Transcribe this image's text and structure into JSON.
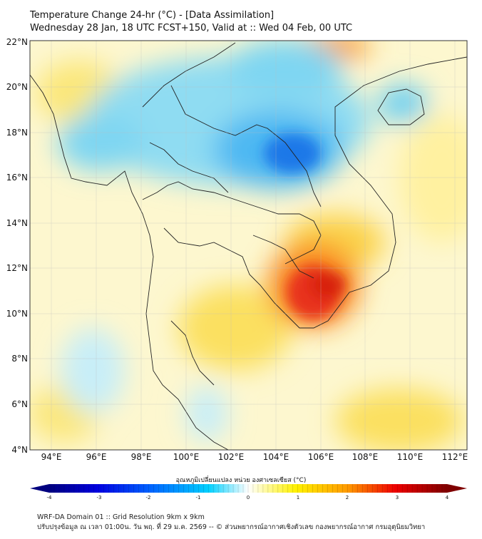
{
  "header": {
    "title": "Temperature Change 24-hr (°C) - [Data Assimilation]",
    "subtitle": "Wednesday 28 Jan, 18 UTC FCST+150, Valid at :: Wed 04 Feb, 00 UTC"
  },
  "map": {
    "lat_labels": [
      "22°N",
      "20°N",
      "18°N",
      "16°N",
      "14°N",
      "12°N",
      "10°N",
      "8°N",
      "6°N",
      "4°N"
    ],
    "lon_labels": [
      "94°E",
      "96°E",
      "98°E",
      "100°E",
      "102°E",
      "104°E",
      "106°E",
      "108°E",
      "110°E",
      "112°E"
    ],
    "lat_range": [
      4,
      22
    ],
    "lon_range": [
      93,
      112.5
    ]
  },
  "colorbar": {
    "title": "อุณหภูมิเปลี่ยนแปลง หน่วย องศาเซลเซียส (°C)",
    "ticks": [
      "-4",
      "-3",
      "-2",
      "-1",
      "0",
      "1",
      "2",
      "3",
      "4"
    ],
    "range": [
      -4,
      4
    ],
    "colors": [
      "#00007f",
      "#0000e0",
      "#0060ff",
      "#00c8ff",
      "#ffffff",
      "#fff200",
      "#ff9a00",
      "#ee0000",
      "#7f0000"
    ]
  },
  "footer": {
    "line1": "WRF-DA Domain 01 :: Grid Resolution 9km x 9km",
    "line2": "ปรับปรุงข้อมูล ณ เวลา 01:00น. วัน พฤ. ที่ 29 ม.ค. 2569 -- © ส่วนพยากรณ์อากาศเชิงตัวเลข กองพยากรณ์อากาศ กรมอุตุนิยมวิทยา"
  }
}
